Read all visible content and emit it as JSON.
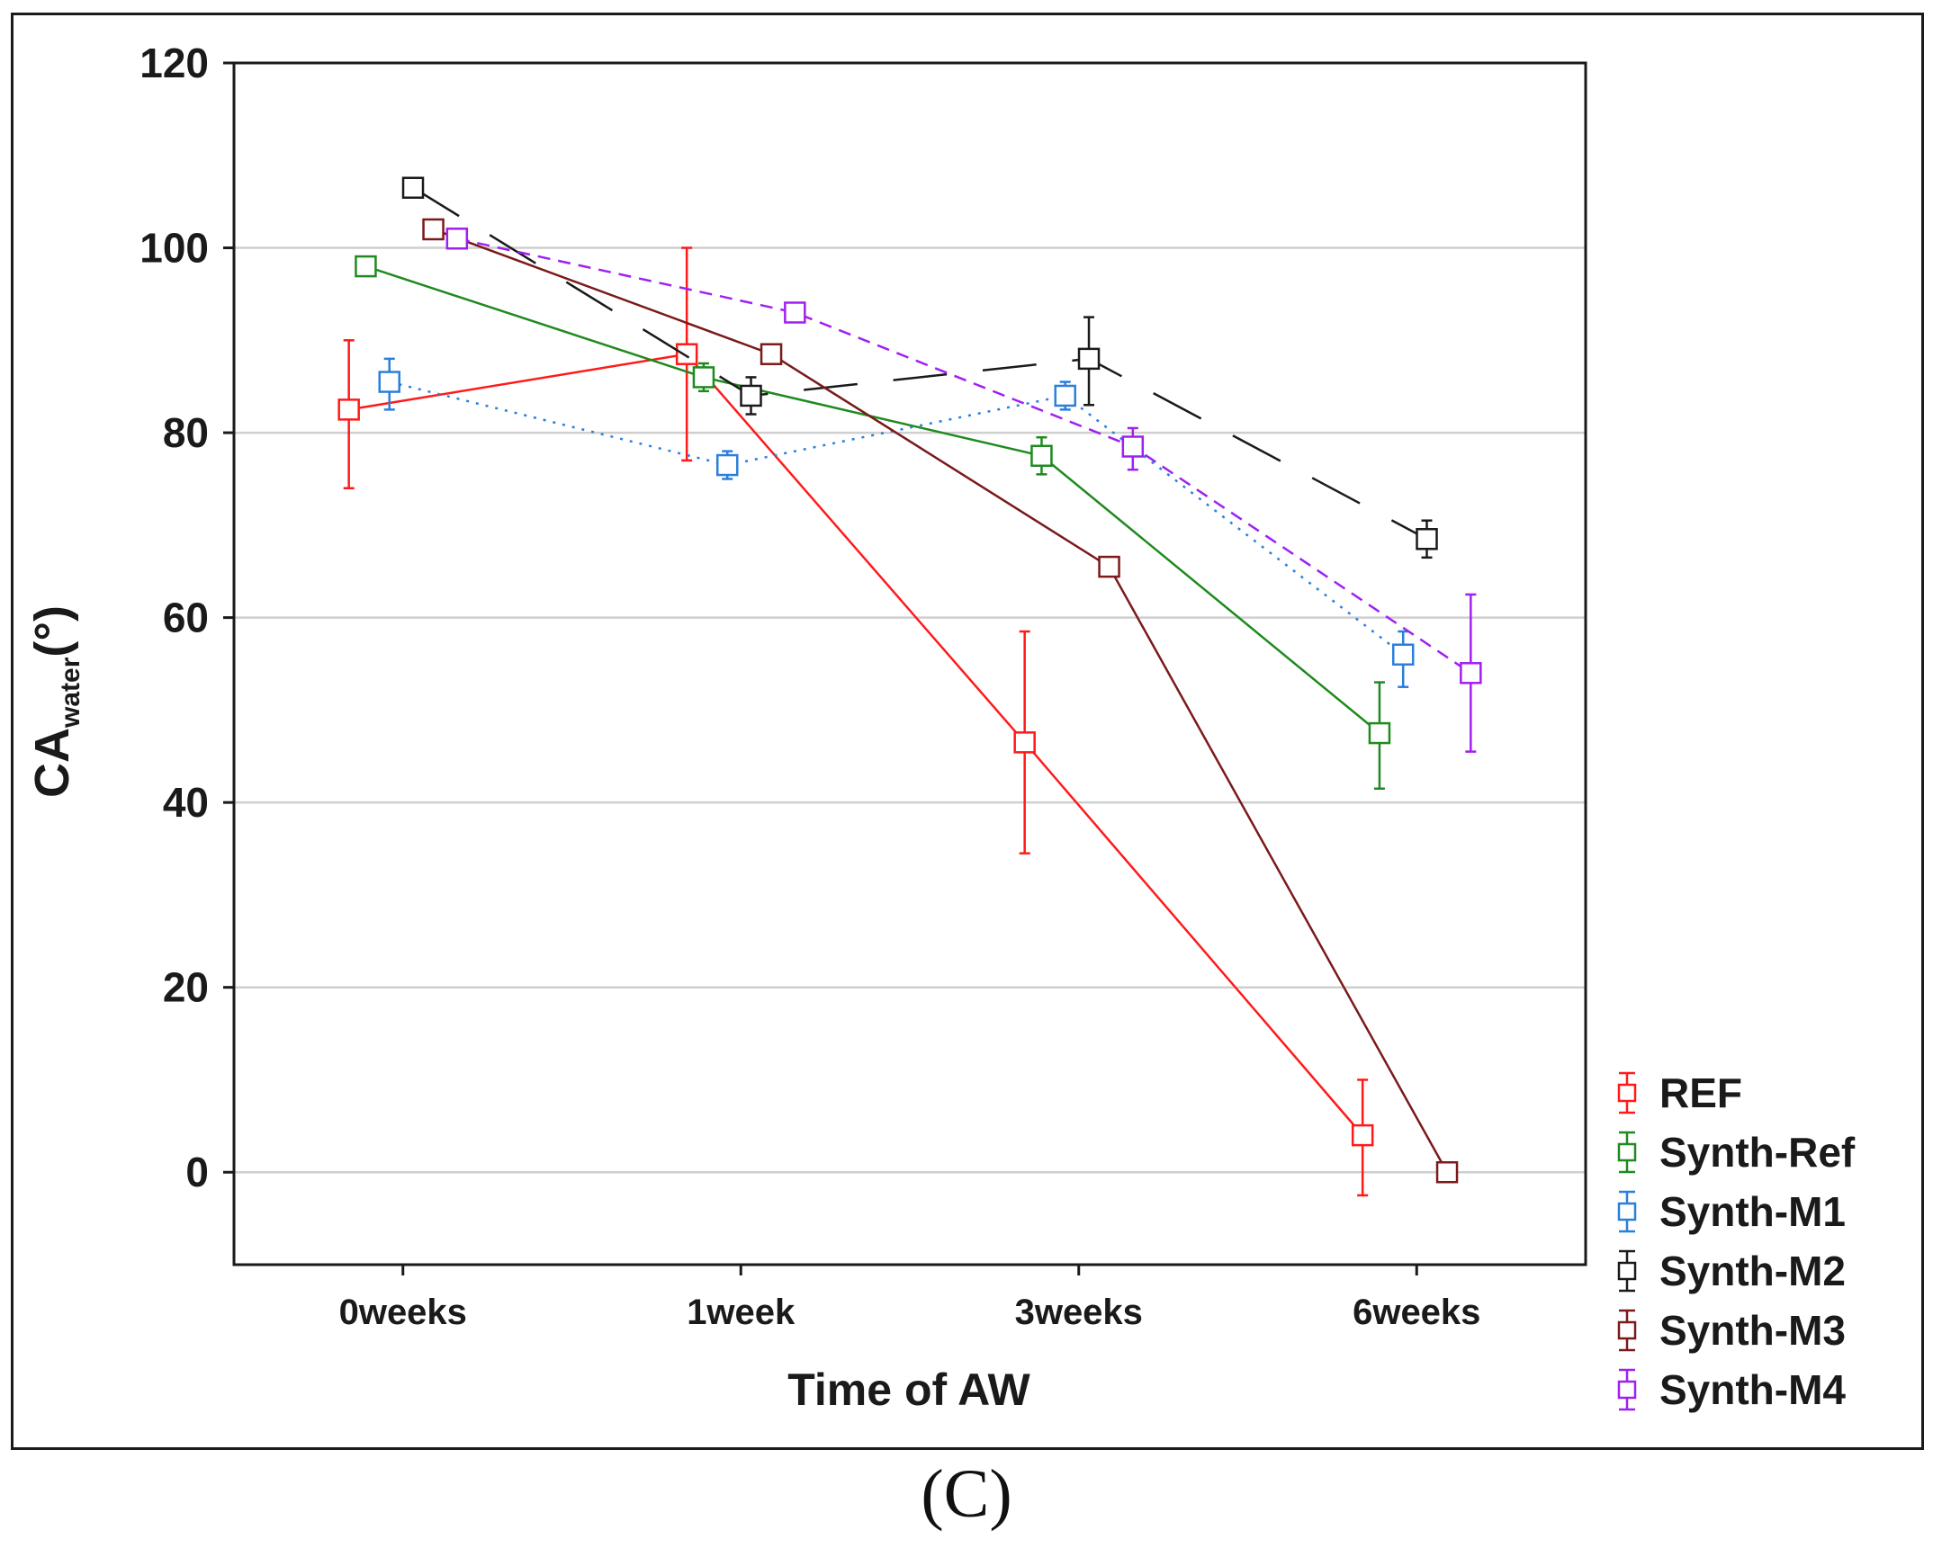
{
  "panel_label": "(C)",
  "chart_data": {
    "type": "line",
    "title": "",
    "xlabel": "Time of AW",
    "ylabel": "CA",
    "ylabel_subscript": "water",
    "ylabel_unit": "(°)",
    "categories": [
      "0weeks",
      "1week",
      "3weeks",
      "6weeks"
    ],
    "ylim": [
      -10,
      120
    ],
    "yticks": [
      0,
      20,
      40,
      60,
      80,
      100,
      120
    ],
    "grid": "horizontal",
    "legend_position": "bottom-right, outside plot",
    "series": [
      {
        "name": "REF",
        "color": "#ff1a1a",
        "dash": "solid",
        "offset": -0.16,
        "values": [
          82.5,
          88.5,
          46.5,
          4
        ],
        "err_low": [
          74,
          77,
          34.5,
          -2.5
        ],
        "err_high": [
          90,
          100,
          58.5,
          10
        ]
      },
      {
        "name": "Synth-Ref",
        "color": "#1f8a1f",
        "dash": "solid",
        "offset": -0.11,
        "values": [
          98,
          86,
          77.5,
          47.5
        ],
        "err_low": [
          97,
          84.5,
          75.5,
          41.5
        ],
        "err_high": [
          99,
          87.5,
          79.5,
          53
        ]
      },
      {
        "name": "Synth-M1",
        "color": "#2b7fdc",
        "dash": "dotted",
        "offset": -0.04,
        "values": [
          85.5,
          76.5,
          84,
          56
        ],
        "err_low": [
          82.5,
          75,
          82.5,
          52.5
        ],
        "err_high": [
          88,
          78,
          85.5,
          58.5
        ]
      },
      {
        "name": "Synth-M2",
        "color": "#1a1a1a",
        "dash": "longdash",
        "offset": 0.03,
        "values": [
          106.5,
          84,
          88,
          68.5
        ],
        "err_low": [
          105.5,
          82,
          83,
          66.5
        ],
        "err_high": [
          107.5,
          86,
          92.5,
          70.5
        ]
      },
      {
        "name": "Synth-M3",
        "color": "#7a1a1a",
        "dash": "solid",
        "offset": 0.09,
        "values": [
          102,
          88.5,
          65.5,
          0
        ],
        "err_low": [
          101,
          87.5,
          64.5,
          -1
        ],
        "err_high": [
          103,
          89.5,
          66.5,
          1
        ]
      },
      {
        "name": "Synth-M4",
        "color": "#a020f0",
        "dash": "dashed",
        "offset": 0.16,
        "values": [
          101,
          93,
          78.5,
          54
        ],
        "err_low": [
          100,
          92,
          76,
          45.5
        ],
        "err_high": [
          102,
          94,
          80.5,
          62.5
        ]
      }
    ]
  }
}
